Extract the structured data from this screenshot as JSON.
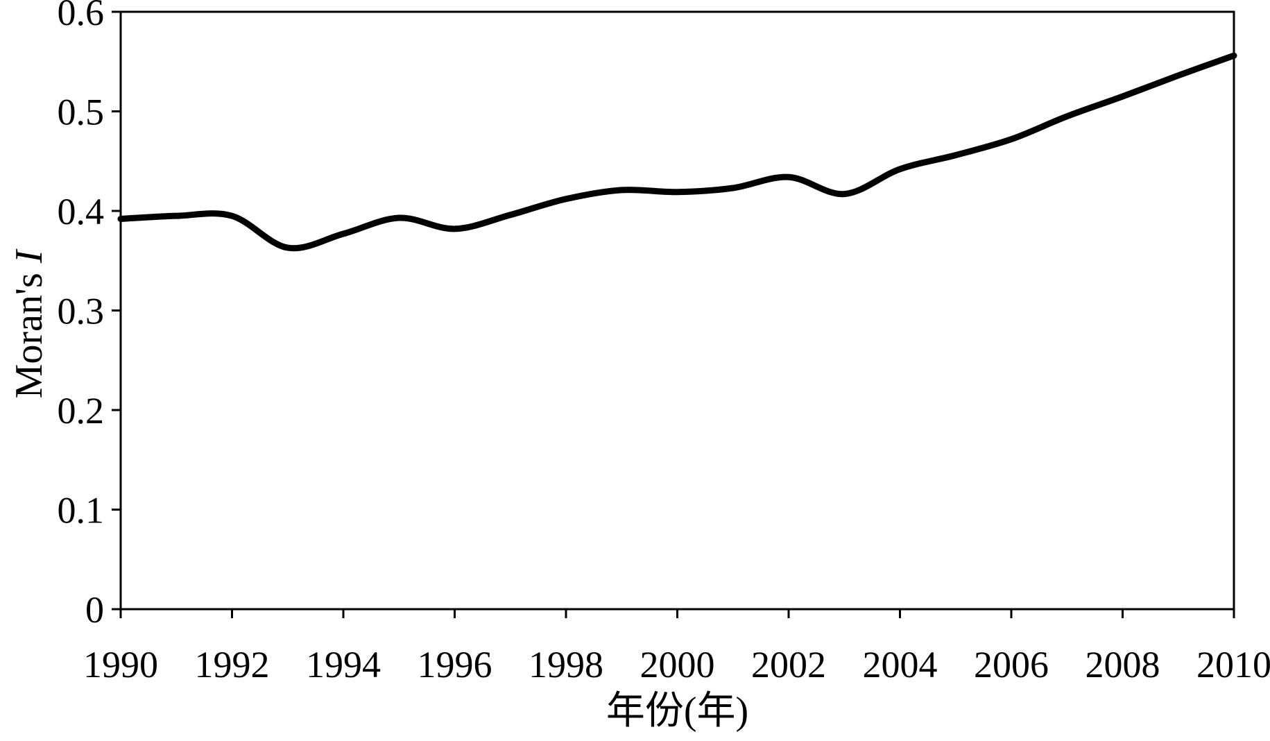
{
  "chart_data": {
    "type": "line",
    "title": "",
    "xlabel": "年份(年)",
    "ylabel_main": "Moran's ",
    "ylabel_italic": "I",
    "xlim": [
      1990,
      2010
    ],
    "ylim": [
      0,
      0.6
    ],
    "x_ticks": [
      1990,
      1992,
      1994,
      1996,
      1998,
      2000,
      2002,
      2004,
      2006,
      2008,
      2010
    ],
    "x_tick_labels": [
      "1990",
      "1992",
      "1994",
      "1996",
      "1998",
      "2000",
      "2002",
      "2004",
      "2006",
      "2008",
      "2010"
    ],
    "y_ticks": [
      0,
      0.1,
      0.2,
      0.3,
      0.4,
      0.5,
      0.6
    ],
    "y_tick_labels": [
      "0",
      "0.1",
      "0.2",
      "0.3",
      "0.4",
      "0.5",
      "0.6"
    ],
    "grid": false,
    "legend": false,
    "line_color": "#000000",
    "series": [
      {
        "x": [
          1990,
          1991,
          1992,
          1993,
          1994,
          1995,
          1996,
          1997,
          1998,
          1999,
          2000,
          2001,
          2002,
          2003,
          2004,
          2005,
          2006,
          2007,
          2008,
          2009,
          2010
        ],
        "values": [
          0.392,
          0.395,
          0.395,
          0.363,
          0.377,
          0.393,
          0.382,
          0.396,
          0.412,
          0.421,
          0.419,
          0.423,
          0.434,
          0.417,
          0.442,
          0.456,
          0.472,
          0.495,
          0.515,
          0.536,
          0.556
        ]
      }
    ]
  }
}
